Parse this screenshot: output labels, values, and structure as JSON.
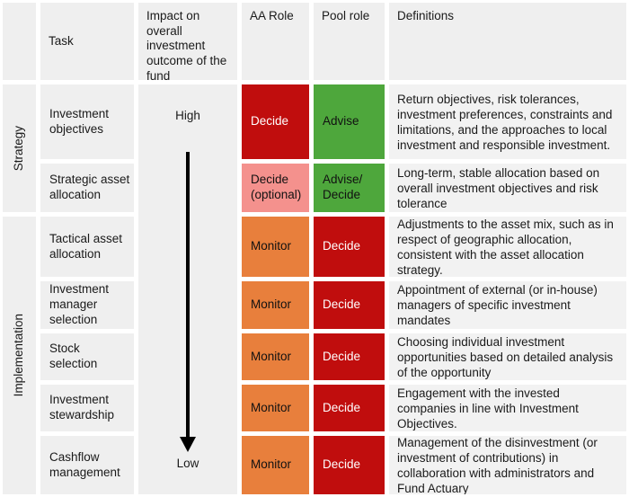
{
  "colors": {
    "gray": "#EFEFEF",
    "defgray": "#F2F2F2",
    "red": "#C00D0D",
    "green": "#4EA73C",
    "orange": "#E87F3C",
    "pink": "#F4918D",
    "arrow": "#000000"
  },
  "header": {
    "task": "Task",
    "impact": "Impact on overall investment outcome of the fund",
    "aa_role": "AA Role",
    "pool_role": "Pool role",
    "definitions": "Definitions"
  },
  "groups": {
    "strategy": "Strategy",
    "implementation": "Implementation"
  },
  "impact_axis": {
    "top": "High",
    "bottom": "Low"
  },
  "rows": [
    {
      "task": "Investment objectives",
      "aa": {
        "label": "Decide",
        "color": "red"
      },
      "pool": {
        "label": "Advise",
        "color": "green"
      },
      "definition": "Return objectives, risk tolerances, investment preferences, constraints and limitations, and the approaches to local investment and responsible investment."
    },
    {
      "task": "Strategic asset allocation",
      "aa": {
        "label": "Decide (optional)",
        "color": "pink"
      },
      "pool": {
        "label": "Advise/ Decide",
        "color": "green"
      },
      "definition": "Long-term, stable allocation based on overall investment objectives and risk tolerance"
    },
    {
      "task": "Tactical asset allocation",
      "aa": {
        "label": "Monitor",
        "color": "orange"
      },
      "pool": {
        "label": "Decide",
        "color": "red"
      },
      "definition": "Adjustments to the asset mix, such as in respect of geographic allocation, consistent with the asset allocation strategy."
    },
    {
      "task": "Investment manager selection",
      "aa": {
        "label": "Monitor",
        "color": "orange"
      },
      "pool": {
        "label": "Decide",
        "color": "red"
      },
      "definition": "Appointment of external (or in-house) managers of specific investment mandates"
    },
    {
      "task": "Stock selection",
      "aa": {
        "label": "Monitor",
        "color": "orange"
      },
      "pool": {
        "label": "Decide",
        "color": "red"
      },
      "definition": "Choosing individual investment opportunities based on detailed analysis of the opportunity"
    },
    {
      "task": "Investment stewardship",
      "aa": {
        "label": "Monitor",
        "color": "orange"
      },
      "pool": {
        "label": "Decide",
        "color": "red"
      },
      "definition": "Engagement with the invested companies in line with Investment Objectives."
    },
    {
      "task": "Cashflow management",
      "aa": {
        "label": "Monitor",
        "color": "orange"
      },
      "pool": {
        "label": "Decide",
        "color": "red"
      },
      "definition": "Management of the disinvestment (or investment of contributions) in collaboration with administrators and Fund Actuary"
    }
  ]
}
